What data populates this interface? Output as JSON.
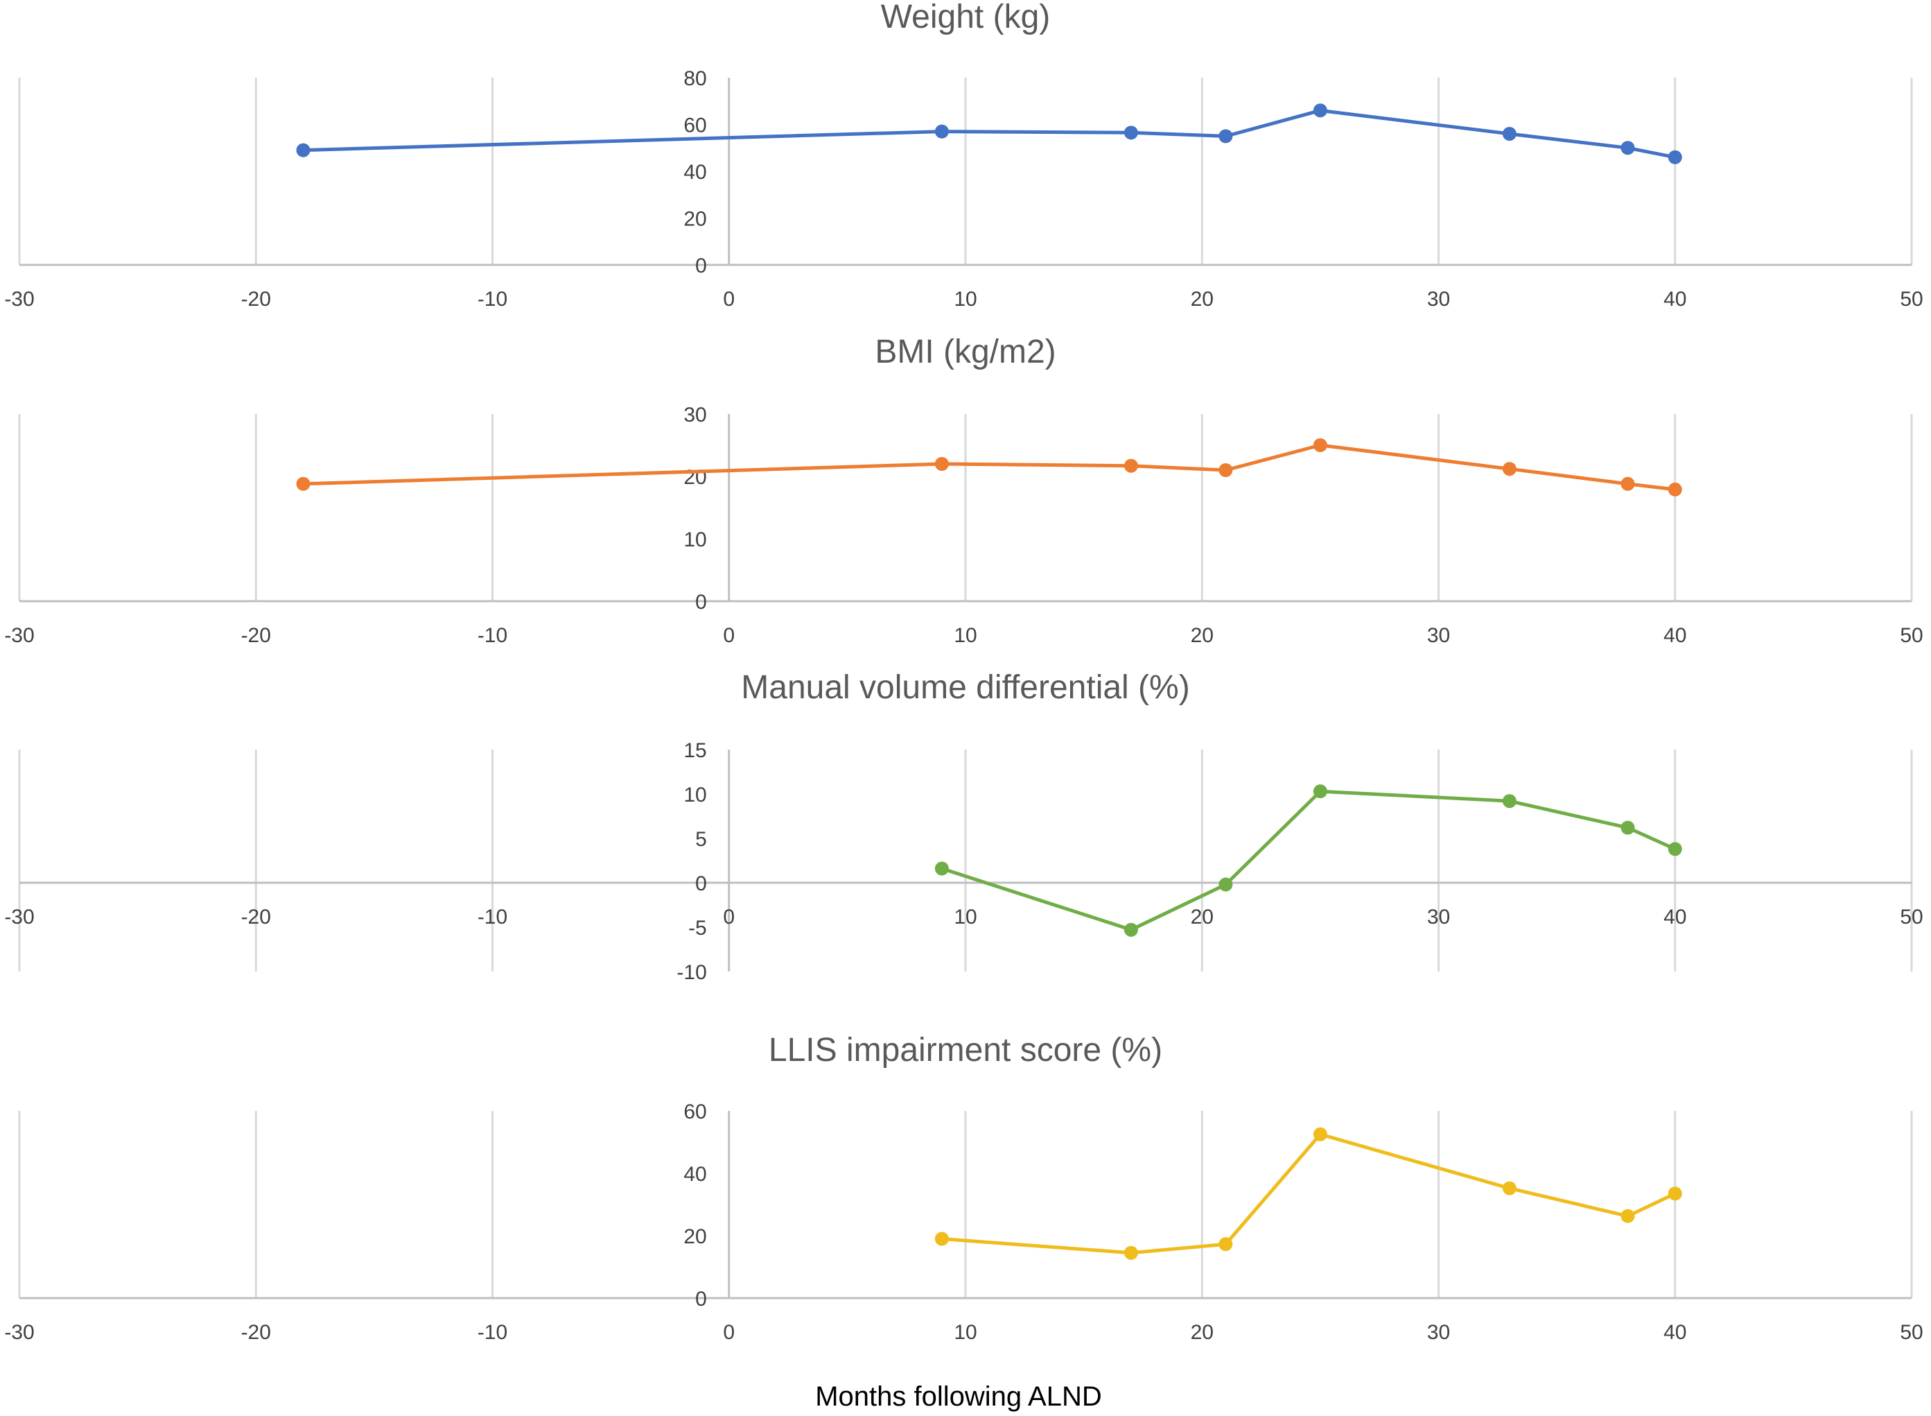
{
  "figure": {
    "xlabel": "Months following ALND"
  },
  "chart_data": [
    {
      "type": "line",
      "title": "Weight (kg)",
      "color": "#4472C4",
      "x": [
        -18,
        9,
        17,
        21,
        25,
        33,
        38,
        40
      ],
      "y": [
        49,
        57,
        56.5,
        55,
        66,
        56,
        50,
        46
      ],
      "xlim": [
        -30,
        50
      ],
      "xticks": [
        -30,
        -20,
        -10,
        0,
        10,
        20,
        30,
        40,
        50
      ],
      "ylim": [
        0,
        80
      ],
      "yticks": [
        0,
        20,
        40,
        60,
        80
      ],
      "xgrid": true,
      "ygrid": false
    },
    {
      "type": "line",
      "title": "BMI (kg/m2)",
      "color": "#ED7D31",
      "x": [
        -18,
        9,
        17,
        21,
        25,
        33,
        38,
        40
      ],
      "y": [
        18.8,
        22,
        21.7,
        21,
        25,
        21.2,
        18.8,
        17.9
      ],
      "xlim": [
        -30,
        50
      ],
      "xticks": [
        -30,
        -20,
        -10,
        0,
        10,
        20,
        30,
        40,
        50
      ],
      "ylim": [
        0,
        30
      ],
      "yticks": [
        0,
        10,
        20,
        30
      ],
      "xgrid": true,
      "ygrid": false
    },
    {
      "type": "line",
      "title": "Manual volume differential (%)",
      "color": "#70AD47",
      "x": [
        9,
        17,
        21,
        25,
        33,
        38,
        40
      ],
      "y": [
        1.6,
        -5.3,
        -0.2,
        10.3,
        9.2,
        6.2,
        3.8
      ],
      "xlim": [
        -30,
        50
      ],
      "xticks": [
        -30,
        -20,
        -10,
        0,
        10,
        20,
        30,
        40,
        50
      ],
      "ylim": [
        -10,
        15
      ],
      "yticks": [
        -10,
        -5,
        0,
        5,
        10,
        15
      ],
      "xgrid": true,
      "ygrid": false
    },
    {
      "type": "line",
      "title": "LLIS impairment score (%)",
      "color": "#F0BC1B",
      "x": [
        9,
        17,
        21,
        25,
        33,
        38,
        40
      ],
      "y": [
        19,
        14.5,
        17.3,
        52.5,
        35.2,
        26.3,
        33.5
      ],
      "xlim": [
        -30,
        50
      ],
      "xticks": [
        -30,
        -20,
        -10,
        0,
        10,
        20,
        30,
        40,
        50
      ],
      "ylim": [
        0,
        60
      ],
      "yticks": [
        0,
        20,
        40,
        60
      ],
      "xgrid": true,
      "ygrid": false
    }
  ]
}
